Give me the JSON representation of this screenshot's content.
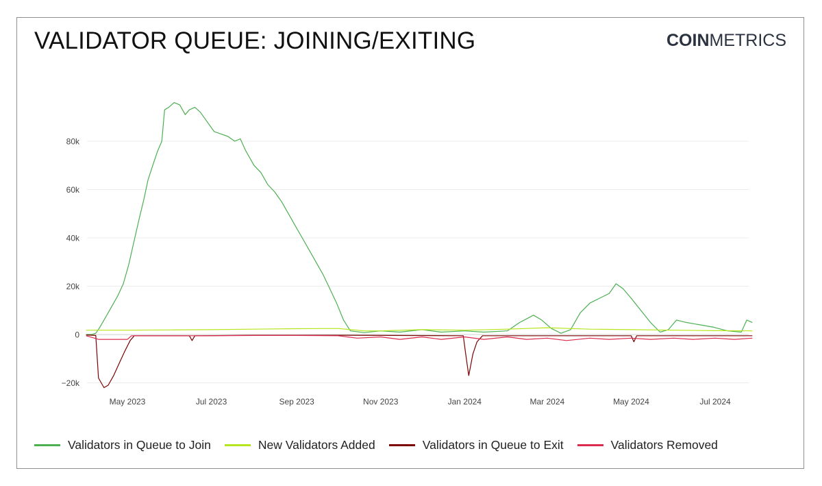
{
  "page": {
    "title": "VALIDATOR QUEUE: JOINING/EXITING",
    "logo_bold": "COIN",
    "logo_light": "METRICS"
  },
  "chart_data": {
    "type": "line",
    "title": "VALIDATOR QUEUE: JOINING/EXITING",
    "xlabel": "",
    "ylabel": "",
    "xlim": [
      "2023-04-01",
      "2024-08-01"
    ],
    "ylim": [
      -22000,
      96000
    ],
    "y_ticks": [
      -20000,
      0,
      20000,
      40000,
      60000,
      80000
    ],
    "y_tick_labels": [
      "−20k",
      "0",
      "20k",
      "40k",
      "60k",
      "80k"
    ],
    "x_ticks": [
      "2023-05-01",
      "2023-07-01",
      "2023-09-01",
      "2023-11-01",
      "2024-01-01",
      "2024-03-01",
      "2024-05-01",
      "2024-07-01"
    ],
    "x_tick_labels": [
      "May 2023",
      "Jul 2023",
      "Sep 2023",
      "Nov 2023",
      "Jan 2024",
      "Mar 2024",
      "May 2024",
      "Jul 2024"
    ],
    "grid": "horizontal",
    "legend": "bottom",
    "series": [
      {
        "name": "Validators in Queue to Join",
        "color": "#4caf50",
        "points": [
          [
            "2023-04-01",
            0
          ],
          [
            "2023-04-05",
            0
          ],
          [
            "2023-04-08",
            500
          ],
          [
            "2023-04-11",
            3000
          ],
          [
            "2023-04-14",
            6000
          ],
          [
            "2023-04-17",
            9000
          ],
          [
            "2023-04-21",
            13000
          ],
          [
            "2023-04-24",
            16000
          ],
          [
            "2023-04-28",
            21000
          ],
          [
            "2023-05-02",
            29000
          ],
          [
            "2023-05-06",
            39000
          ],
          [
            "2023-05-10",
            49000
          ],
          [
            "2023-05-13",
            56000
          ],
          [
            "2023-05-16",
            64000
          ],
          [
            "2023-05-20",
            71000
          ],
          [
            "2023-05-23",
            76000
          ],
          [
            "2023-05-26",
            80000
          ],
          [
            "2023-05-28",
            93000
          ],
          [
            "2023-05-31",
            94000
          ],
          [
            "2023-06-04",
            96000
          ],
          [
            "2023-06-08",
            95000
          ],
          [
            "2023-06-12",
            91000
          ],
          [
            "2023-06-15",
            93000
          ],
          [
            "2023-06-19",
            94000
          ],
          [
            "2023-06-23",
            92000
          ],
          [
            "2023-06-28",
            88000
          ],
          [
            "2023-07-03",
            84000
          ],
          [
            "2023-07-08",
            83000
          ],
          [
            "2023-07-13",
            82000
          ],
          [
            "2023-07-18",
            80000
          ],
          [
            "2023-07-22",
            81000
          ],
          [
            "2023-07-26",
            76000
          ],
          [
            "2023-08-01",
            70000
          ],
          [
            "2023-08-06",
            67000
          ],
          [
            "2023-08-11",
            62000
          ],
          [
            "2023-08-16",
            59000
          ],
          [
            "2023-08-21",
            55000
          ],
          [
            "2023-08-26",
            50000
          ],
          [
            "2023-08-31",
            45000
          ],
          [
            "2023-09-05",
            40000
          ],
          [
            "2023-09-10",
            35000
          ],
          [
            "2023-09-15",
            30000
          ],
          [
            "2023-09-20",
            25000
          ],
          [
            "2023-09-25",
            19000
          ],
          [
            "2023-09-30",
            13000
          ],
          [
            "2023-10-05",
            6000
          ],
          [
            "2023-10-10",
            1500
          ],
          [
            "2023-10-20",
            800
          ],
          [
            "2023-11-01",
            1500
          ],
          [
            "2023-11-15",
            1000
          ],
          [
            "2023-12-01",
            2000
          ],
          [
            "2023-12-15",
            1000
          ],
          [
            "2024-01-01",
            1500
          ],
          [
            "2024-01-15",
            1000
          ],
          [
            "2024-02-01",
            1500
          ],
          [
            "2024-02-10",
            5000
          ],
          [
            "2024-02-20",
            8000
          ],
          [
            "2024-02-26",
            6000
          ],
          [
            "2024-03-04",
            2500
          ],
          [
            "2024-03-11",
            500
          ],
          [
            "2024-03-18",
            2000
          ],
          [
            "2024-03-25",
            9000
          ],
          [
            "2024-04-01",
            13000
          ],
          [
            "2024-04-08",
            15000
          ],
          [
            "2024-04-15",
            17000
          ],
          [
            "2024-04-20",
            21000
          ],
          [
            "2024-04-25",
            19000
          ],
          [
            "2024-05-01",
            15000
          ],
          [
            "2024-05-08",
            10000
          ],
          [
            "2024-05-15",
            5000
          ],
          [
            "2024-05-22",
            1000
          ],
          [
            "2024-05-28",
            2000
          ],
          [
            "2024-06-03",
            6000
          ],
          [
            "2024-06-10",
            5000
          ],
          [
            "2024-06-20",
            4000
          ],
          [
            "2024-06-30",
            3000
          ],
          [
            "2024-07-10",
            1500
          ],
          [
            "2024-07-20",
            1000
          ],
          [
            "2024-07-24",
            6000
          ],
          [
            "2024-07-28",
            5000
          ]
        ]
      },
      {
        "name": "New Validators Added",
        "color": "#b5e61d",
        "points": [
          [
            "2023-04-01",
            1800
          ],
          [
            "2023-05-01",
            1800
          ],
          [
            "2023-06-01",
            1900
          ],
          [
            "2023-07-01",
            2000
          ],
          [
            "2023-08-01",
            2200
          ],
          [
            "2023-09-01",
            2400
          ],
          [
            "2023-10-01",
            2500
          ],
          [
            "2023-10-20",
            1500
          ],
          [
            "2023-11-01",
            1500
          ],
          [
            "2023-12-01",
            2000
          ],
          [
            "2024-01-01",
            1800
          ],
          [
            "2024-02-01",
            2200
          ],
          [
            "2024-03-01",
            2800
          ],
          [
            "2024-04-01",
            2200
          ],
          [
            "2024-05-01",
            2000
          ],
          [
            "2024-06-01",
            1800
          ],
          [
            "2024-07-01",
            1600
          ],
          [
            "2024-07-28",
            1500
          ]
        ]
      },
      {
        "name": "Validators in Queue to Exit",
        "color": "#7b0000",
        "points": [
          [
            "2023-04-01",
            -200
          ],
          [
            "2023-04-08",
            -400
          ],
          [
            "2023-04-10",
            -18000
          ],
          [
            "2023-04-12",
            -20000
          ],
          [
            "2023-04-14",
            -22000
          ],
          [
            "2023-04-17",
            -21000
          ],
          [
            "2023-04-21",
            -17000
          ],
          [
            "2023-04-25",
            -12000
          ],
          [
            "2023-04-29",
            -7000
          ],
          [
            "2023-05-03",
            -2500
          ],
          [
            "2023-05-06",
            -500
          ],
          [
            "2023-06-01",
            -500
          ],
          [
            "2023-06-15",
            -500
          ],
          [
            "2023-06-17",
            -2500
          ],
          [
            "2023-06-19",
            -500
          ],
          [
            "2023-08-01",
            -300
          ],
          [
            "2023-10-01",
            -300
          ],
          [
            "2023-12-31",
            -500
          ],
          [
            "2024-01-02",
            -9000
          ],
          [
            "2024-01-04",
            -17000
          ],
          [
            "2024-01-07",
            -8000
          ],
          [
            "2024-01-10",
            -3000
          ],
          [
            "2024-01-14",
            -500
          ],
          [
            "2024-03-01",
            -500
          ],
          [
            "2024-05-01",
            -500
          ],
          [
            "2024-05-03",
            -3000
          ],
          [
            "2024-05-05",
            -500
          ],
          [
            "2024-07-28",
            -500
          ]
        ]
      },
      {
        "name": "Validators Removed",
        "color": "#dc2a4e",
        "points": [
          [
            "2023-04-01",
            -500
          ],
          [
            "2023-04-10",
            -2000
          ],
          [
            "2023-05-01",
            -2000
          ],
          [
            "2023-05-04",
            -500
          ],
          [
            "2023-06-01",
            -500
          ],
          [
            "2023-07-01",
            -500
          ],
          [
            "2023-08-01",
            -400
          ],
          [
            "2023-09-01",
            -400
          ],
          [
            "2023-10-01",
            -500
          ],
          [
            "2023-10-15",
            -1500
          ],
          [
            "2023-11-01",
            -1000
          ],
          [
            "2023-11-15",
            -2000
          ],
          [
            "2023-12-01",
            -1000
          ],
          [
            "2023-12-15",
            -2000
          ],
          [
            "2024-01-01",
            -1000
          ],
          [
            "2024-01-15",
            -2000
          ],
          [
            "2024-02-01",
            -1000
          ],
          [
            "2024-02-15",
            -2000
          ],
          [
            "2024-03-01",
            -1500
          ],
          [
            "2024-03-15",
            -2500
          ],
          [
            "2024-04-01",
            -1500
          ],
          [
            "2024-04-15",
            -2000
          ],
          [
            "2024-05-01",
            -1500
          ],
          [
            "2024-05-15",
            -2000
          ],
          [
            "2024-06-01",
            -1500
          ],
          [
            "2024-06-15",
            -2000
          ],
          [
            "2024-07-01",
            -1500
          ],
          [
            "2024-07-15",
            -2000
          ],
          [
            "2024-07-28",
            -1500
          ]
        ]
      }
    ]
  }
}
